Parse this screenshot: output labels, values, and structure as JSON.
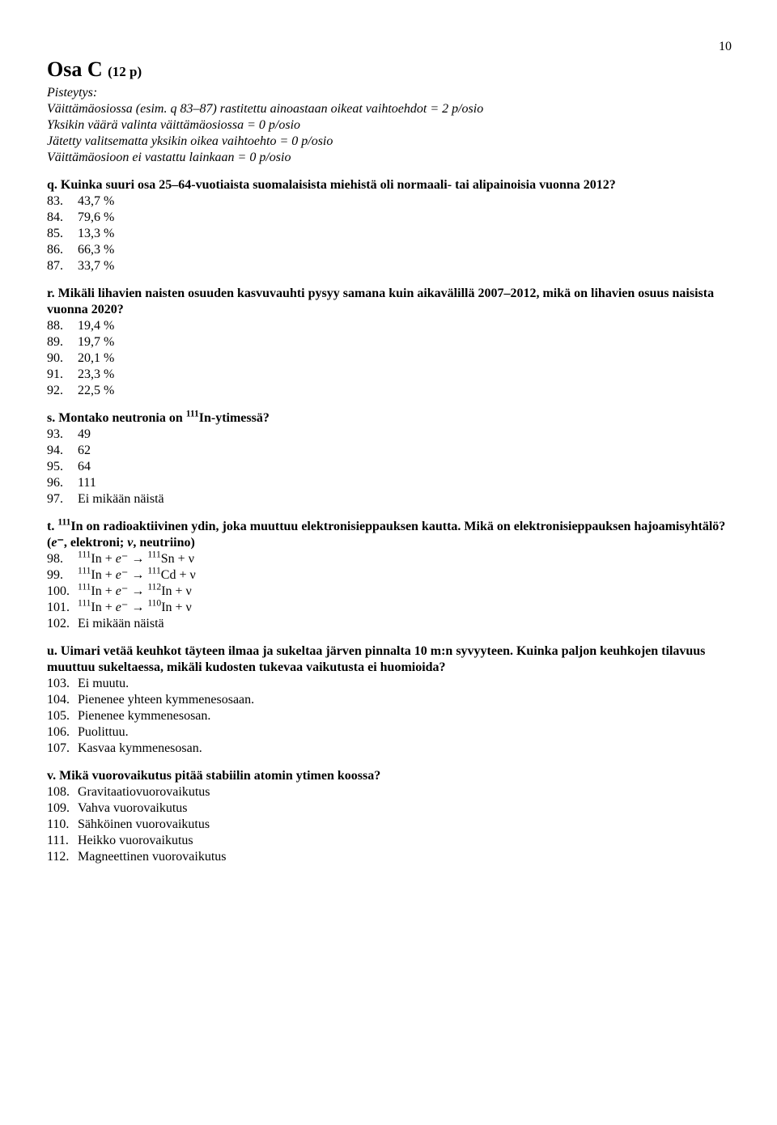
{
  "pageNumber": "10",
  "sectionTitle": "Osa C",
  "sectionPoints": "(12 p)",
  "scoring": {
    "heading": "Pisteytys:",
    "line1a": "Väittämäosiossa (esim. ",
    "line1b": "q",
    "line1c": " 83–87) rastitettu ainoastaan oikeat vaihtoehdot = 2 p/osio",
    "line2": "Yksikin väärä valinta väittämäosiossa = 0 p/osio",
    "line3": "Jätetty valitsematta yksikin oikea vaihtoehto = 0 p/osio",
    "line4": "Väittämäosioon ei vastattu lainkaan = 0 p/osio"
  },
  "q_q": {
    "text": "q. Kuinka suuri osa 25–64-vuotiaista suomalaisista miehistä oli normaali- tai alipainoisia vuonna 2012?",
    "opts": [
      {
        "n": "83.",
        "t": "43,7 %"
      },
      {
        "n": "84.",
        "t": "79,6 %"
      },
      {
        "n": "85.",
        "t": "13,3 %"
      },
      {
        "n": "86.",
        "t": "66,3 %"
      },
      {
        "n": "87.",
        "t": "33,7 %"
      }
    ]
  },
  "q_r": {
    "text": "r. Mikäli lihavien naisten osuuden kasvuvauhti pysyy samana kuin aikavälillä 2007–2012, mikä on lihavien osuus naisista vuonna 2020?",
    "opts": [
      {
        "n": "88.",
        "t": "19,4 %"
      },
      {
        "n": "89.",
        "t": "19,7 %"
      },
      {
        "n": "90.",
        "t": "20,1 %"
      },
      {
        "n": "91.",
        "t": "23,3 %"
      },
      {
        "n": "92.",
        "t": "22,5 %"
      }
    ]
  },
  "q_s": {
    "t1": "s. Montako neutronia on ",
    "sup": "111",
    "t2": "In-ytimessä?",
    "opts": [
      {
        "n": "93.",
        "t": "49"
      },
      {
        "n": "94.",
        "t": "62"
      },
      {
        "n": "95.",
        "t": "64"
      },
      {
        "n": "96.",
        "t": "111"
      },
      {
        "n": "97.",
        "t": "Ei mikään näistä"
      }
    ]
  },
  "q_t": {
    "t1": "t. ",
    "sup": "111",
    "t2": "In on radioaktiivinen ydin, joka muuttuu elektronisieppauksen kautta. Mikä on elektronisieppauksen hajoamisyhtälö? (",
    "t3": "e",
    "t4": "⁻, elektroni; ",
    "t5": "ν",
    "t6": ", neutriino)",
    "opts": [
      {
        "n": "98.",
        "left_sup": "111",
        "left": "In + ",
        "e": "e",
        "minus": "⁻ → ",
        "right_sup": "111",
        "right": "Sn + ν"
      },
      {
        "n": "99.",
        "left_sup": "111",
        "left": "In + ",
        "e": "e",
        "minus": "⁻ → ",
        "right_sup": "111",
        "right": "Cd + ν"
      },
      {
        "n": "100.",
        "left_sup": "111",
        "left": "In + ",
        "e": "e",
        "minus": "⁻ → ",
        "right_sup": "112",
        "right": "In + ν"
      },
      {
        "n": "101.",
        "left_sup": "111",
        "left": "In + ",
        "e": "e",
        "minus": "⁻ → ",
        "right_sup": "110",
        "right": "In + ν"
      },
      {
        "n": "102.",
        "plain": "Ei mikään näistä"
      }
    ]
  },
  "q_u": {
    "text": "u. Uimari vetää keuhkot täyteen ilmaa ja sukeltaa järven pinnalta 10 m:n syvyyteen. Kuinka paljon keuhkojen tilavuus muuttuu sukeltaessa, mikäli kudosten tukevaa vaikutusta ei huomioida?",
    "opts": [
      {
        "n": "103.",
        "t": "Ei muutu."
      },
      {
        "n": "104.",
        "t": "Pienenee yhteen kymmenesosaan."
      },
      {
        "n": "105.",
        "t": "Pienenee kymmenesosan."
      },
      {
        "n": "106.",
        "t": "Puolittuu."
      },
      {
        "n": "107.",
        "t": "Kasvaa kymmenesosan."
      }
    ]
  },
  "q_v": {
    "text": "v. Mikä vuorovaikutus pitää stabiilin atomin ytimen koossa?",
    "opts": [
      {
        "n": "108.",
        "t": "Gravitaatiovuorovaikutus"
      },
      {
        "n": "109.",
        "t": "Vahva vuorovaikutus"
      },
      {
        "n": "110.",
        "t": "Sähköinen vuorovaikutus"
      },
      {
        "n": "111.",
        "t": "Heikko vuorovaikutus"
      },
      {
        "n": "112.",
        "t": "Magneettinen vuorovaikutus"
      }
    ]
  }
}
